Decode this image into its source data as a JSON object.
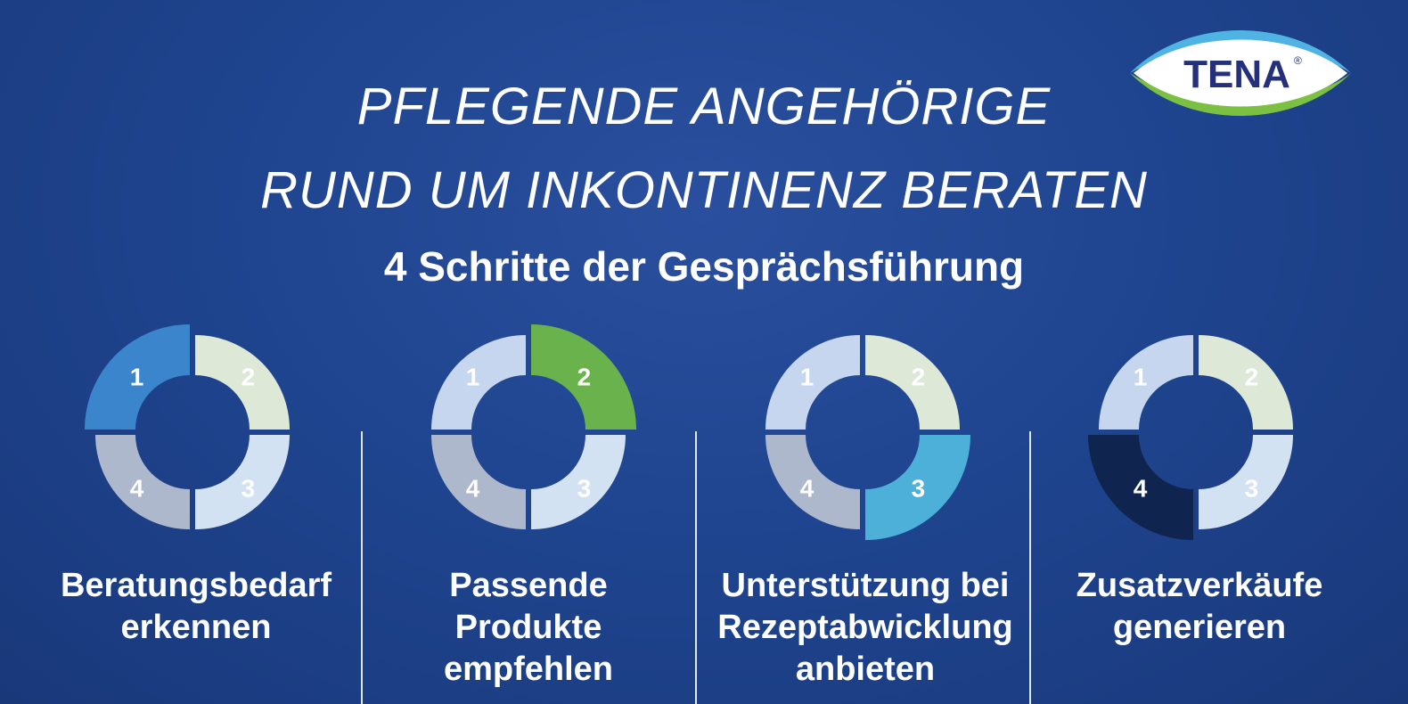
{
  "header": {
    "line1": "PFLEGENDE ANGEHÖRIGE",
    "line2": "RUND UM INKONTINENZ BERATEN",
    "subtitle": "4 Schritte der Gesprächsführung"
  },
  "logo": {
    "text": "TENA",
    "mark": "®"
  },
  "colors": {
    "seg1_dim": "#c6d6ee",
    "seg2_dim": "#dde9d6",
    "seg3_dim": "#d3e2f2",
    "seg4_dim": "#aeb8cc",
    "seg1_active": "#3b85cc",
    "seg2_active": "#6ab24c",
    "seg3_active": "#4db0d8",
    "seg4_active": "#0f2550"
  },
  "steps": [
    {
      "active": 1,
      "numbers": [
        "1",
        "2",
        "3",
        "4"
      ],
      "caption": [
        "Beratungsbedarf",
        "erkennen"
      ]
    },
    {
      "active": 2,
      "numbers": [
        "1",
        "2",
        "3",
        "4"
      ],
      "caption": [
        "Passende",
        "Produkte",
        "empfehlen"
      ]
    },
    {
      "active": 3,
      "numbers": [
        "1",
        "2",
        "3",
        "4"
      ],
      "caption": [
        "Unterstützung bei",
        "Rezeptabwicklung",
        "anbieten"
      ]
    },
    {
      "active": 4,
      "numbers": [
        "1",
        "2",
        "3",
        "4"
      ],
      "caption": [
        "Zusatzverkäufe",
        "generieren"
      ]
    }
  ]
}
